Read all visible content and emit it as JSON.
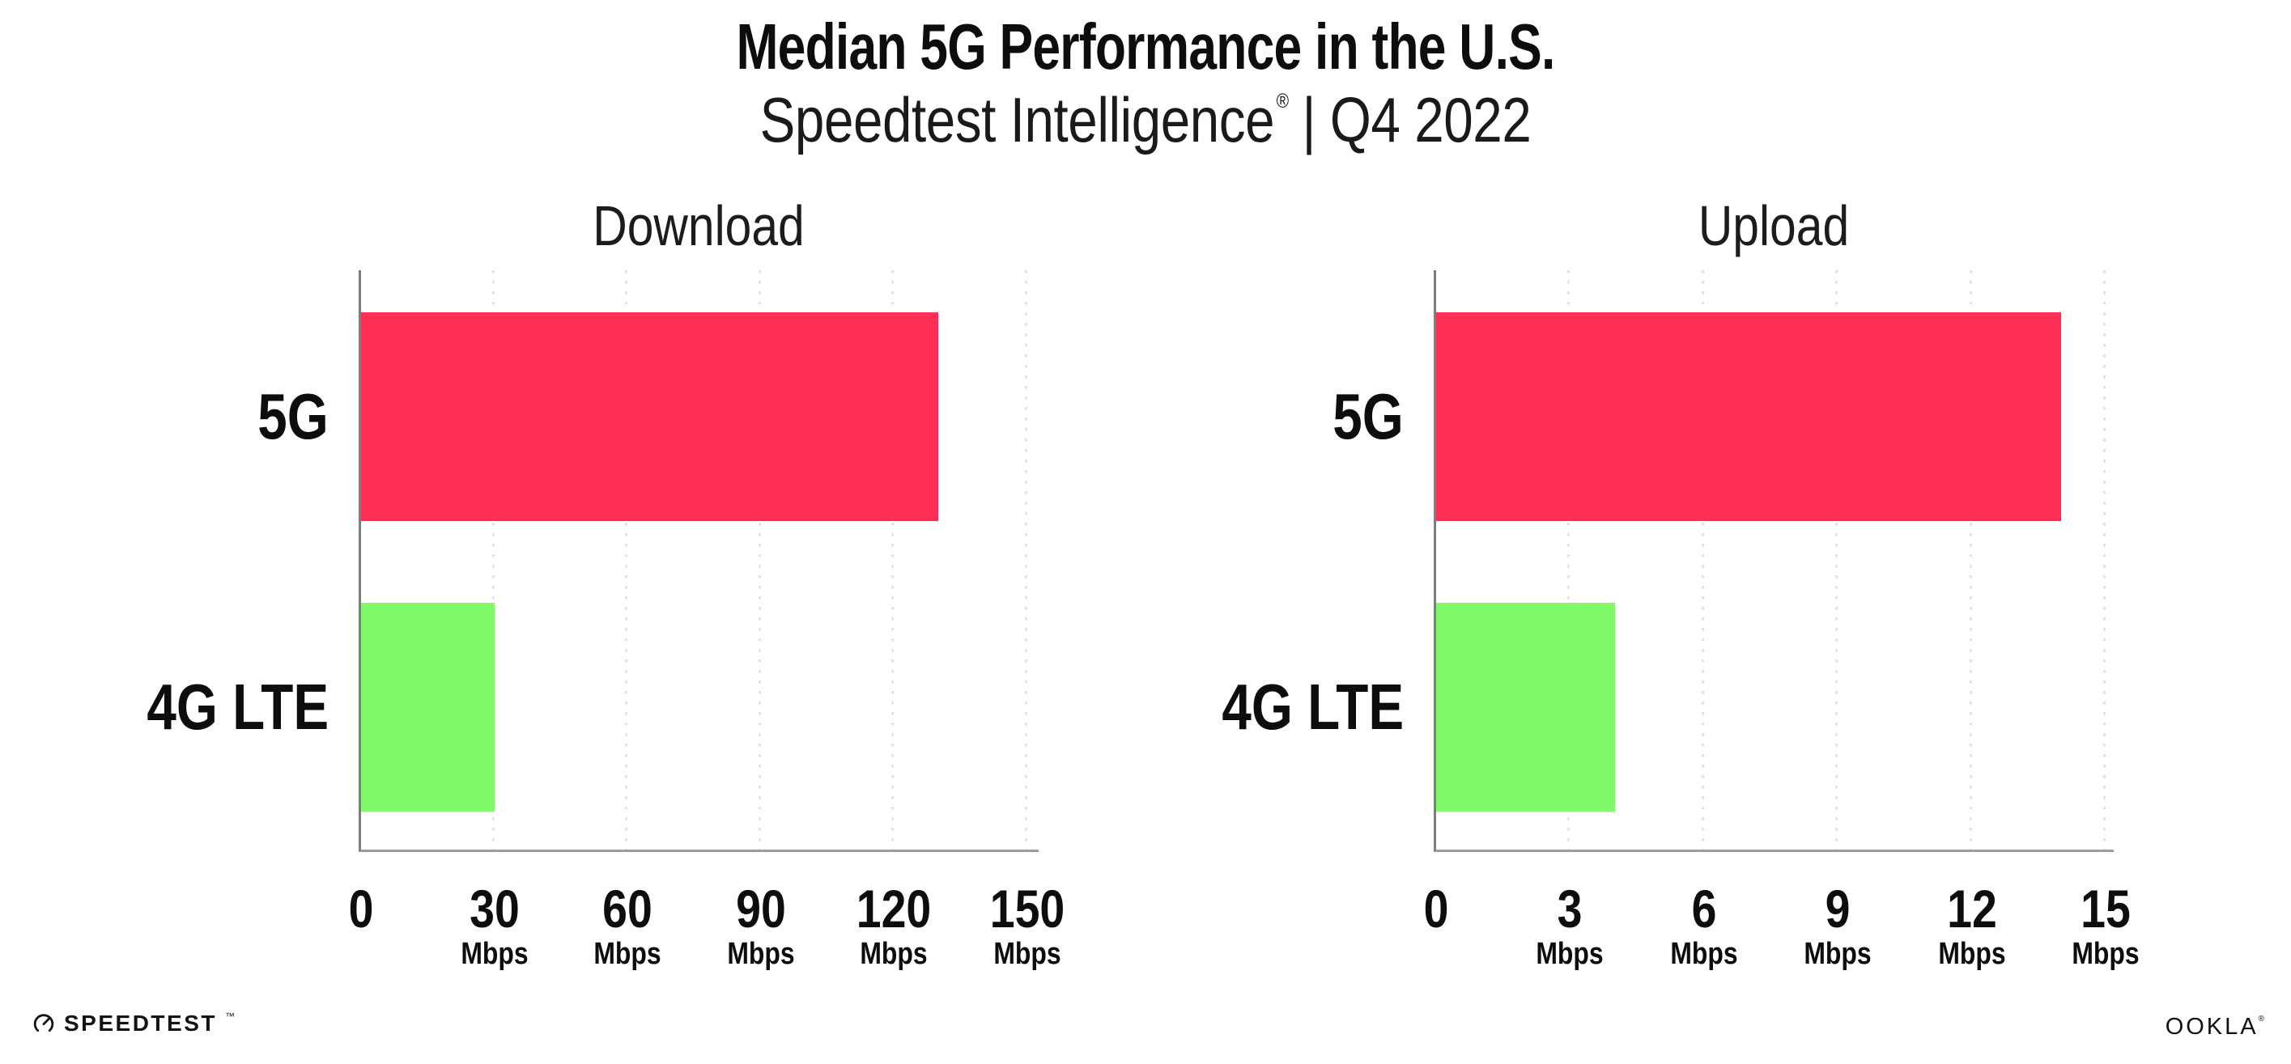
{
  "header": {
    "title": "Median 5G Performance in the U.S.",
    "subtitle_brand": "Speedtest Intelligence",
    "subtitle_reg": "®",
    "subtitle_period": "| Q4 2022"
  },
  "chart_data": [
    {
      "type": "bar",
      "title": "Download",
      "orientation": "horizontal",
      "categories": [
        "5G",
        "4G LTE"
      ],
      "values": [
        130,
        30
      ],
      "unit": "Mbps",
      "xlim": [
        0,
        150
      ],
      "xticks": [
        0,
        30,
        60,
        90,
        120,
        150
      ],
      "grid": "dotted-vertical",
      "legend": "none",
      "bar_colors": [
        "#ff2e57",
        "#80fa68"
      ]
    },
    {
      "type": "bar",
      "title": "Upload",
      "orientation": "horizontal",
      "categories": [
        "5G",
        "4G LTE"
      ],
      "values": [
        14,
        4
      ],
      "unit": "Mbps",
      "xlim": [
        0,
        15
      ],
      "xticks": [
        0,
        3,
        6,
        9,
        12,
        15
      ],
      "grid": "dotted-vertical",
      "legend": "none",
      "bar_colors": [
        "#ff2e57",
        "#80fa68"
      ]
    }
  ],
  "colors": {
    "bar_5g": "#ff2e57",
    "bar_4g": "#80fa68",
    "axis": "#8a8a8a",
    "gridline": "#e0e1ea",
    "text": "#111111"
  },
  "footer": {
    "speedtest_label": "SPEEDTEST",
    "speedtest_mark": "™",
    "speedtest_icon": "gauge-icon",
    "ookla_label": "OOKLA",
    "ookla_mark": "®"
  }
}
